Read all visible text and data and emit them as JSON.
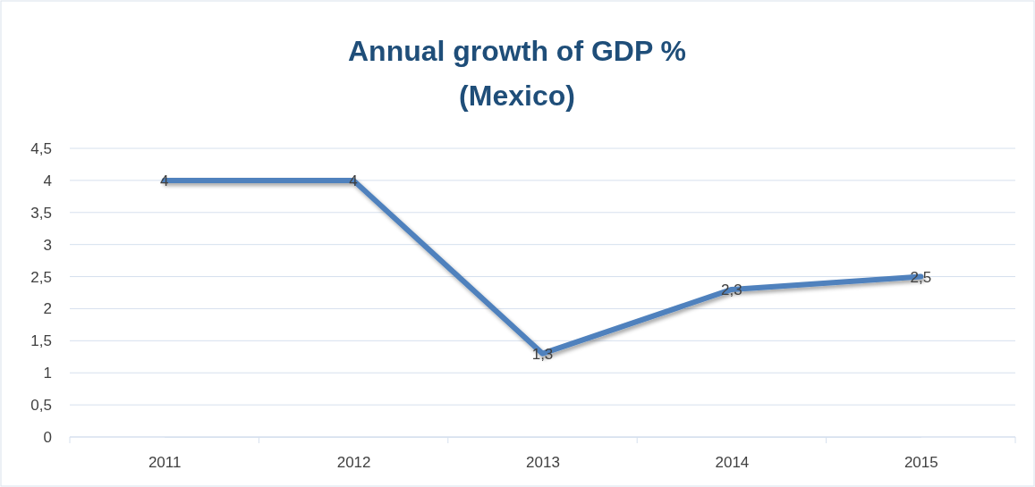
{
  "chart_data": {
    "type": "line",
    "title": "Annual growth of GDP %",
    "subtitle": "(Mexico)",
    "categories": [
      "2011",
      "2012",
      "2013",
      "2014",
      "2015"
    ],
    "series": [
      {
        "color": "#4f81bd",
        "values": [
          4,
          4,
          1.3,
          2.3,
          2.5
        ],
        "value_labels": [
          "4",
          "4",
          "1,3",
          "2,3",
          "2,5"
        ]
      }
    ],
    "ylim": [
      0,
      4.5
    ],
    "yticks": [
      0,
      {
        "value": 0.5,
        "label": "0,5"
      },
      1,
      {
        "value": 1.5,
        "label": "1,5"
      },
      2,
      {
        "value": 2.5,
        "label": "2,5"
      },
      3,
      {
        "value": 3.5,
        "label": "3,5"
      },
      4,
      {
        "value": 4.5,
        "label": "4,5"
      }
    ],
    "grid": "y",
    "marker": "none",
    "line_style": "solid"
  }
}
